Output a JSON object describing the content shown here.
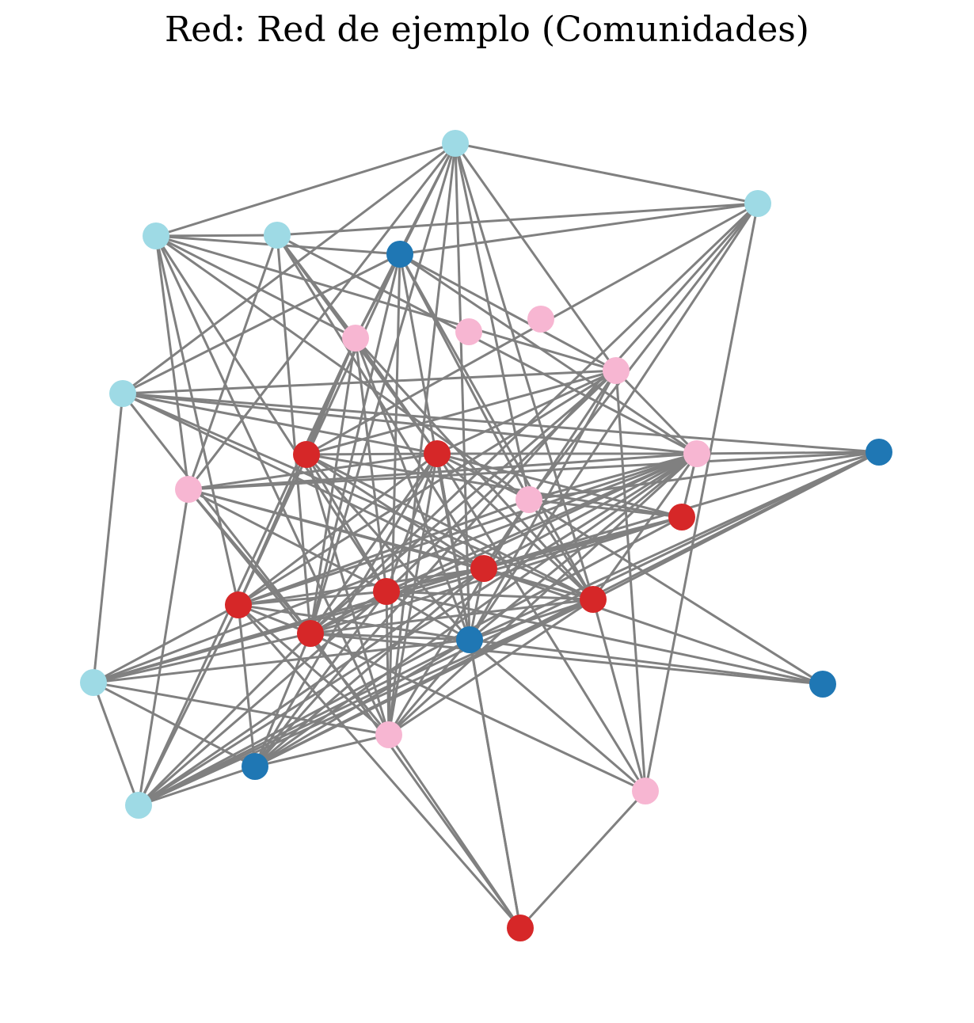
{
  "title": "Red: Red de ejemplo (Comunidades)",
  "edge_color": "#808080",
  "community_colors": {
    "A": "#1f77b4",
    "B": "#9edae5",
    "C": "#d62728",
    "D": "#f7b6d2"
  },
  "nodes": [
    {
      "id": 1,
      "community": "B"
    },
    {
      "id": 2,
      "community": "B"
    },
    {
      "id": 3,
      "community": "B"
    },
    {
      "id": 4,
      "community": "A"
    },
    {
      "id": 5,
      "community": "B"
    },
    {
      "id": 6,
      "community": "D"
    },
    {
      "id": 7,
      "community": "D"
    },
    {
      "id": 8,
      "community": "D"
    },
    {
      "id": 9,
      "community": "B"
    },
    {
      "id": 10,
      "community": "D"
    },
    {
      "id": 11,
      "community": "C"
    },
    {
      "id": 12,
      "community": "C"
    },
    {
      "id": 13,
      "community": "D"
    },
    {
      "id": 14,
      "community": "A"
    },
    {
      "id": 15,
      "community": "D"
    },
    {
      "id": 16,
      "community": "D"
    },
    {
      "id": 17,
      "community": "C"
    },
    {
      "id": 18,
      "community": "C"
    },
    {
      "id": 19,
      "community": "C"
    },
    {
      "id": 20,
      "community": "C"
    },
    {
      "id": 21,
      "community": "C"
    },
    {
      "id": 22,
      "community": "C"
    },
    {
      "id": 23,
      "community": "A"
    },
    {
      "id": 24,
      "community": "B"
    },
    {
      "id": 25,
      "community": "A"
    },
    {
      "id": 26,
      "community": "D"
    },
    {
      "id": 27,
      "community": "A"
    },
    {
      "id": 28,
      "community": "B"
    },
    {
      "id": 29,
      "community": "D"
    },
    {
      "id": 30,
      "community": "C"
    }
  ],
  "edges": [
    [
      1,
      2
    ],
    [
      1,
      3
    ],
    [
      1,
      4
    ],
    [
      1,
      10
    ],
    [
      1,
      8
    ],
    [
      1,
      9
    ],
    [
      1,
      20
    ],
    [
      1,
      15
    ],
    [
      1,
      22
    ],
    [
      1,
      26
    ],
    [
      1,
      23
    ],
    [
      1,
      16
    ],
    [
      2,
      5
    ],
    [
      2,
      4
    ],
    [
      2,
      23
    ],
    [
      2,
      11
    ],
    [
      2,
      27
    ],
    [
      2,
      16
    ],
    [
      2,
      22
    ],
    [
      2,
      29
    ],
    [
      3,
      4
    ],
    [
      3,
      8
    ],
    [
      3,
      10
    ],
    [
      3,
      15
    ],
    [
      3,
      16
    ],
    [
      3,
      5
    ],
    [
      3,
      21
    ],
    [
      3,
      19
    ],
    [
      3,
      26
    ],
    [
      5,
      8
    ],
    [
      5,
      15
    ],
    [
      5,
      13
    ],
    [
      5,
      12
    ],
    [
      5,
      18
    ],
    [
      5,
      22
    ],
    [
      4,
      9
    ],
    [
      4,
      8
    ],
    [
      4,
      10
    ],
    [
      4,
      20
    ],
    [
      4,
      21
    ],
    [
      4,
      22
    ],
    [
      4,
      26
    ],
    [
      4,
      23
    ],
    [
      4,
      16
    ],
    [
      4,
      13
    ],
    [
      9,
      10
    ],
    [
      9,
      13
    ],
    [
      9,
      18
    ],
    [
      9,
      22
    ],
    [
      9,
      20
    ],
    [
      9,
      12
    ],
    [
      9,
      24
    ],
    [
      9,
      14
    ],
    [
      14,
      13
    ],
    [
      14,
      15
    ],
    [
      14,
      23
    ],
    [
      14,
      16
    ],
    [
      14,
      20
    ],
    [
      14,
      24
    ],
    [
      14,
      28
    ],
    [
      14,
      27
    ],
    [
      8,
      21
    ],
    [
      8,
      19
    ],
    [
      8,
      22
    ],
    [
      8,
      20
    ],
    [
      8,
      12
    ],
    [
      8,
      23
    ],
    [
      8,
      28
    ],
    [
      8,
      11
    ],
    [
      10,
      11
    ],
    [
      10,
      12
    ],
    [
      10,
      13
    ],
    [
      10,
      22
    ],
    [
      10,
      21
    ],
    [
      10,
      18
    ],
    [
      10,
      19
    ],
    [
      10,
      23
    ],
    [
      10,
      29
    ],
    [
      15,
      13
    ],
    [
      15,
      20
    ],
    [
      15,
      19
    ],
    [
      15,
      18
    ],
    [
      15,
      22
    ],
    [
      15,
      26
    ],
    [
      15,
      12
    ],
    [
      15,
      28
    ],
    [
      16,
      12
    ],
    [
      16,
      21
    ],
    [
      16,
      13
    ],
    [
      16,
      20
    ],
    [
      16,
      26
    ],
    [
      16,
      17
    ],
    [
      16,
      25
    ],
    [
      16,
      18
    ],
    [
      11,
      12
    ],
    [
      11,
      17
    ],
    [
      11,
      20
    ],
    [
      11,
      23
    ],
    [
      11,
      19
    ],
    [
      11,
      18
    ],
    [
      11,
      26
    ],
    [
      12,
      17
    ],
    [
      12,
      13
    ],
    [
      12,
      20
    ],
    [
      12,
      22
    ],
    [
      12,
      19
    ],
    [
      12,
      21
    ],
    [
      12,
      29
    ],
    [
      12,
      30
    ],
    [
      12,
      23
    ],
    [
      12,
      26
    ],
    [
      12,
      27
    ],
    [
      13,
      17
    ],
    [
      13,
      19
    ],
    [
      13,
      20
    ],
    [
      13,
      21
    ],
    [
      13,
      22
    ],
    [
      13,
      23
    ],
    [
      13,
      24
    ],
    [
      13,
      26
    ],
    [
      13,
      27
    ],
    [
      13,
      28
    ],
    [
      13,
      18
    ],
    [
      17,
      18
    ],
    [
      17,
      19
    ],
    [
      17,
      22
    ],
    [
      17,
      24
    ],
    [
      17,
      28
    ],
    [
      18,
      19
    ],
    [
      18,
      20
    ],
    [
      18,
      21
    ],
    [
      18,
      23
    ],
    [
      18,
      24
    ],
    [
      18,
      25
    ],
    [
      18,
      27
    ],
    [
      18,
      28
    ],
    [
      19,
      20
    ],
    [
      19,
      21
    ],
    [
      19,
      22
    ],
    [
      19,
      23
    ],
    [
      19,
      25
    ],
    [
      19,
      26
    ],
    [
      19,
      27
    ],
    [
      19,
      28
    ],
    [
      20,
      22
    ],
    [
      20,
      23
    ],
    [
      20,
      27
    ],
    [
      20,
      28
    ],
    [
      20,
      26
    ],
    [
      21,
      22
    ],
    [
      21,
      23
    ],
    [
      21,
      24
    ],
    [
      21,
      26
    ],
    [
      21,
      28
    ],
    [
      21,
      27
    ],
    [
      22,
      23
    ],
    [
      22,
      24
    ],
    [
      22,
      25
    ],
    [
      22,
      27
    ],
    [
      22,
      28
    ],
    [
      22,
      29
    ],
    [
      22,
      30
    ],
    [
      23,
      24
    ],
    [
      23,
      26
    ],
    [
      23,
      28
    ],
    [
      23,
      29
    ],
    [
      23,
      30
    ],
    [
      23,
      25
    ],
    [
      23,
      27
    ],
    [
      24,
      27
    ],
    [
      24,
      28
    ],
    [
      24,
      26
    ],
    [
      26,
      27
    ],
    [
      26,
      30
    ],
    [
      27,
      28
    ],
    [
      29,
      30
    ],
    [
      21,
      30
    ],
    [
      20,
      29
    ]
  ]
}
